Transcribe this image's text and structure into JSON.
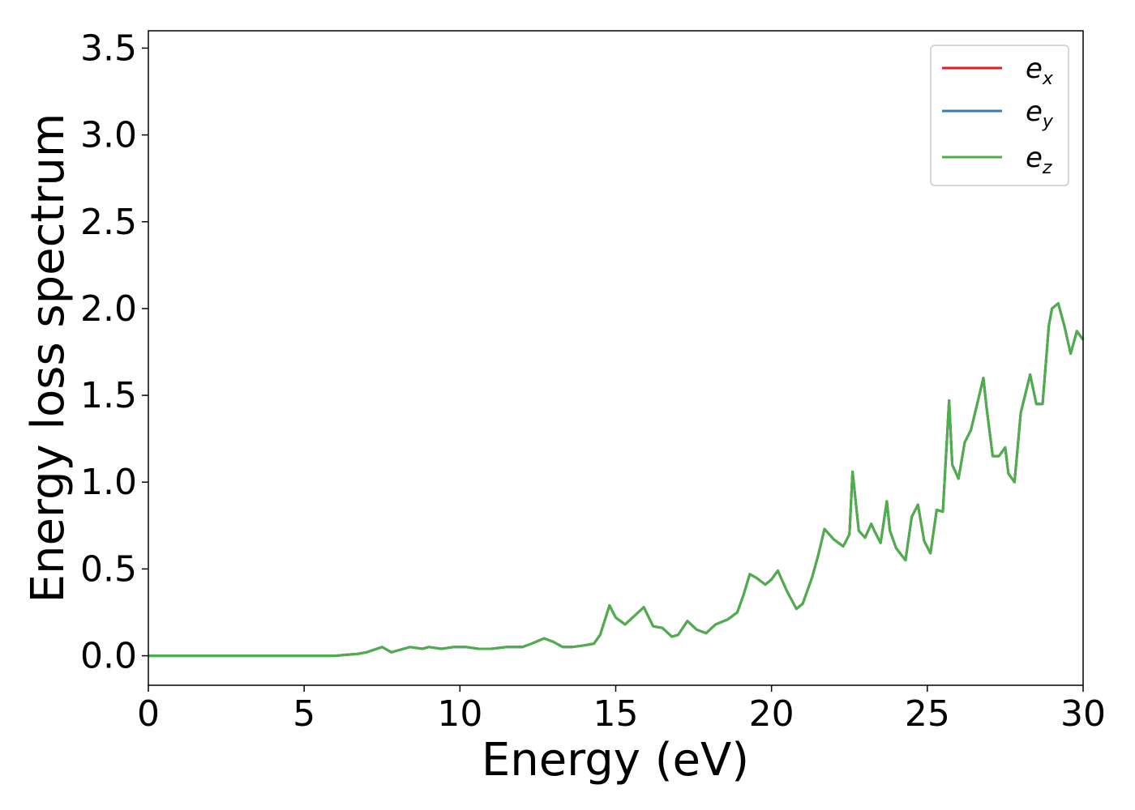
{
  "chart_data": {
    "type": "line",
    "title": "",
    "xlabel": "Energy (eV)",
    "ylabel": "Energy loss spectrum",
    "xlim": [
      0,
      30
    ],
    "ylim": [
      -0.17,
      3.6
    ],
    "xticks": [
      0,
      5,
      10,
      15,
      20,
      25,
      30
    ],
    "yticks": [
      0.0,
      0.5,
      1.0,
      1.5,
      2.0,
      2.5,
      3.0,
      3.5
    ],
    "xtick_labels": [
      "0",
      "5",
      "10",
      "15",
      "20",
      "25",
      "30"
    ],
    "ytick_labels": [
      "0.0",
      "0.5",
      "1.0",
      "1.5",
      "2.0",
      "2.5",
      "3.0",
      "3.5"
    ],
    "grid": false,
    "legend_position": "top-right",
    "series": [
      {
        "name": "e",
        "subscript": "x",
        "color": "#e41a1c"
      },
      {
        "name": "e",
        "subscript": "y",
        "color": "#377eb8"
      },
      {
        "name": "e",
        "subscript": "z",
        "color": "#4daf4a"
      }
    ],
    "x": [
      0,
      1,
      2,
      3,
      4,
      5,
      6,
      6.3,
      6.7,
      7.0,
      7.5,
      7.8,
      8.0,
      8.4,
      8.8,
      9.0,
      9.4,
      9.8,
      10.2,
      10.6,
      11.0,
      11.5,
      12.0,
      12.3,
      12.7,
      13.0,
      13.3,
      13.6,
      14.0,
      14.3,
      14.5,
      14.8,
      15.0,
      15.3,
      15.6,
      15.9,
      16.2,
      16.5,
      16.8,
      17.0,
      17.3,
      17.6,
      17.9,
      18.2,
      18.6,
      18.9,
      19.1,
      19.3,
      19.5,
      19.8,
      20.0,
      20.2,
      20.5,
      20.8,
      21.0,
      21.3,
      21.5,
      21.7,
      22.0,
      22.3,
      22.5,
      22.6,
      22.8,
      23.0,
      23.2,
      23.3,
      23.5,
      23.7,
      23.8,
      24.0,
      24.3,
      24.5,
      24.7,
      24.9,
      25.1,
      25.3,
      25.5,
      25.7,
      25.8,
      26.0,
      26.2,
      26.4,
      26.6,
      26.8,
      26.9,
      27.1,
      27.3,
      27.5,
      27.6,
      27.8,
      28.0,
      28.3,
      28.5,
      28.7,
      28.9,
      29.0,
      29.2,
      29.4,
      29.6,
      29.8,
      30.0
    ],
    "values": [
      0.0,
      0.0,
      0.0,
      0.0,
      0.0,
      0.0,
      0.0,
      0.005,
      0.01,
      0.02,
      0.05,
      0.02,
      0.03,
      0.05,
      0.04,
      0.05,
      0.04,
      0.05,
      0.05,
      0.04,
      0.04,
      0.05,
      0.05,
      0.07,
      0.1,
      0.08,
      0.05,
      0.05,
      0.06,
      0.07,
      0.12,
      0.29,
      0.22,
      0.18,
      0.23,
      0.28,
      0.17,
      0.16,
      0.11,
      0.12,
      0.2,
      0.15,
      0.13,
      0.18,
      0.21,
      0.25,
      0.35,
      0.47,
      0.45,
      0.41,
      0.44,
      0.49,
      0.37,
      0.27,
      0.3,
      0.45,
      0.58,
      0.73,
      0.67,
      0.63,
      0.7,
      1.06,
      0.72,
      0.68,
      0.76,
      0.72,
      0.65,
      0.89,
      0.72,
      0.62,
      0.55,
      0.8,
      0.87,
      0.66,
      0.59,
      0.84,
      0.83,
      1.47,
      1.1,
      1.02,
      1.23,
      1.3,
      1.45,
      1.6,
      1.43,
      1.15,
      1.15,
      1.2,
      1.05,
      1.0,
      1.4,
      1.62,
      1.45,
      1.45,
      1.9,
      2.0,
      2.03,
      1.9,
      1.74,
      1.87,
      1.82
    ]
  }
}
